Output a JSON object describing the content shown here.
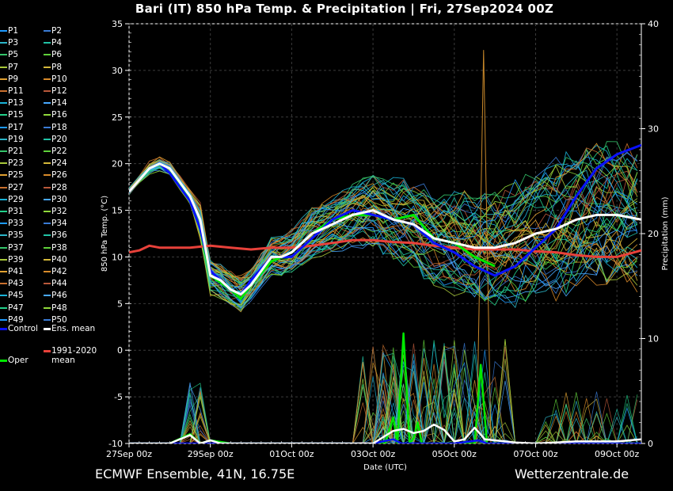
{
  "header": {
    "title": "Bari  (IT)  850 hPa Temp. & Precipitation | Fri, 27Sep2024 00Z"
  },
  "footer": {
    "model_label": "ECMWF Ensemble, 41N, 16.75E",
    "site_label": "Wetterzentrale.de"
  },
  "legend": {
    "members": [
      "P1",
      "P2",
      "P3",
      "P4",
      "P5",
      "P6",
      "P7",
      "P8",
      "P9",
      "P10",
      "P11",
      "P12",
      "P13",
      "P14",
      "P15",
      "P16",
      "P17",
      "P18",
      "P19",
      "P20",
      "P21",
      "P22",
      "P23",
      "P24",
      "P25",
      "P26",
      "P27",
      "P28",
      "P29",
      "P30",
      "P31",
      "P32",
      "P33",
      "P34",
      "P35",
      "P36",
      "P37",
      "P38",
      "P39",
      "P40",
      "P41",
      "P42",
      "P43",
      "P44",
      "P45",
      "P46",
      "P47",
      "P48",
      "P49",
      "P50"
    ],
    "control": "Control",
    "ens_mean": "Ens. mean",
    "climate_line1": "1991-2020",
    "climate_line2": "mean",
    "oper": "Oper",
    "colors": {
      "control": "#0a12ff",
      "ens_mean": "#ffffff",
      "climate": "#e8413a",
      "oper": "#00e800"
    }
  },
  "chart_data": {
    "type": "line",
    "xlabel": "Date (UTC)",
    "ylabel_left": "850 hPa Temp. (°C)",
    "ylabel_right": "Precipitation (mm)",
    "x_unit": "days since 27Sep 00z",
    "xlim": [
      0,
      12.6
    ],
    "ylim_left": [
      -10,
      35
    ],
    "ylim_right": [
      0,
      40
    ],
    "x_ticks": [
      0,
      2,
      4,
      6,
      8,
      10,
      12
    ],
    "x_tick_labels": [
      "27Sep 00z",
      "29Sep 00z",
      "01Oct 00z",
      "03Oct 00z",
      "05Oct 00z",
      "07Oct 00z",
      "09Oct 00z"
    ],
    "y_ticks_left": [
      35,
      30,
      25,
      20,
      15,
      10,
      5,
      0,
      -5,
      -10
    ],
    "y_ticks_right": [
      40,
      30,
      20,
      10,
      0
    ],
    "grid": true,
    "series": [
      {
        "name": "Ens. mean",
        "x": [
          0,
          0.5,
          0.75,
          1,
          1.25,
          1.5,
          1.75,
          2,
          2.25,
          2.5,
          2.75,
          3,
          3.25,
          3.5,
          3.75,
          4,
          4.5,
          5,
          5.5,
          6,
          6.5,
          7,
          7.5,
          8,
          8.5,
          9,
          9.5,
          10,
          10.5,
          11,
          11.5,
          12,
          12.6
        ],
        "y": [
          17,
          19.5,
          20,
          19.5,
          18,
          16.5,
          14,
          8,
          7.5,
          6.5,
          6,
          7,
          8.5,
          10,
          10,
          10.5,
          12.5,
          13.5,
          14.5,
          15,
          14,
          13.5,
          12,
          11.5,
          11,
          11,
          11.5,
          12.5,
          13,
          14,
          14.5,
          14.5,
          14
        ]
      },
      {
        "name": "Control",
        "x": [
          0,
          0.5,
          0.75,
          1,
          1.5,
          1.75,
          2,
          2.5,
          2.75,
          3,
          3.5,
          4,
          4.5,
          5,
          5.5,
          6,
          6.5,
          7,
          7.5,
          8,
          8.5,
          9,
          9.5,
          10,
          10.5,
          11,
          11.5,
          12,
          12.6
        ],
        "y": [
          17,
          19.5,
          20,
          19,
          16,
          13,
          8.5,
          6.5,
          6,
          7.5,
          10,
          10,
          12,
          14,
          15,
          14.5,
          14,
          13.5,
          11.5,
          10.5,
          9,
          8,
          9,
          11,
          13,
          16.5,
          19.5,
          21,
          22
        ]
      },
      {
        "name": "Oper",
        "x": [
          0,
          0.5,
          0.75,
          1,
          1.5,
          1.75,
          2,
          2.5,
          2.75,
          3,
          3.5,
          4,
          4.5,
          5,
          5.5,
          6,
          6.5,
          7,
          7.5,
          8,
          8.5,
          9
        ],
        "y": [
          17,
          19.5,
          20,
          19.5,
          16,
          13,
          8,
          6.5,
          5.5,
          7,
          9.5,
          10.5,
          12.5,
          14,
          14.5,
          14.5,
          14,
          14.5,
          12,
          11.5,
          10,
          9
        ]
      },
      {
        "name": "1991-2020 mean",
        "x": [
          0,
          0.25,
          0.5,
          0.75,
          1,
          1.5,
          2,
          2.5,
          3,
          3.5,
          4,
          4.5,
          5,
          5.5,
          6,
          6.5,
          7,
          7.5,
          8,
          8.5,
          9,
          9.5,
          10,
          10.5,
          11,
          11.5,
          12,
          12.6
        ],
        "y": [
          10.5,
          10.7,
          11.2,
          11,
          11,
          11,
          11.2,
          11,
          10.8,
          11,
          11,
          11.2,
          11.5,
          11.8,
          11.8,
          11.6,
          11.5,
          11.2,
          11,
          10.8,
          10.8,
          10.8,
          10.6,
          10.5,
          10.2,
          10,
          10,
          10.7
        ]
      }
    ],
    "precip_series": [
      {
        "name": "Ens. mean",
        "x": [
          0,
          1,
          1.5,
          1.75,
          2,
          2.25,
          2.5,
          3,
          4,
          5,
          6,
          6.25,
          6.5,
          6.75,
          7,
          7.25,
          7.5,
          7.75,
          8,
          8.25,
          8.5,
          8.75,
          9,
          9.25,
          9.5,
          10,
          10.5,
          11,
          12,
          12.6
        ],
        "y": [
          0,
          0,
          0.8,
          0,
          0.3,
          0,
          0,
          0,
          0,
          0,
          0,
          0.6,
          1.2,
          1.4,
          1,
          1.2,
          1.8,
          1.3,
          0.2,
          0.4,
          1.5,
          0.4,
          0.3,
          0.2,
          0.1,
          0,
          0.1,
          0.2,
          0.2,
          0.4
        ]
      },
      {
        "name": "Oper",
        "x": [
          0,
          1,
          1.5,
          1.75,
          2,
          2.5,
          3,
          5,
          6,
          6.3,
          6.5,
          6.6,
          6.75,
          6.9,
          7,
          7.1,
          7.2,
          8,
          8.5,
          8.65,
          8.8,
          9,
          9.5,
          10,
          12.6
        ],
        "y": [
          0,
          0,
          0.9,
          0,
          0.3,
          0,
          0,
          0,
          0,
          0,
          2.5,
          0,
          10.5,
          0,
          0.5,
          2,
          0,
          0,
          0,
          7.5,
          0,
          0,
          0,
          0,
          0
        ]
      },
      {
        "name": "Control",
        "x": [
          0,
          6,
          6.5,
          6.7,
          7,
          8,
          8.6,
          8.8,
          9,
          12.6
        ],
        "y": [
          0,
          0,
          0.4,
          0,
          0,
          0,
          0.3,
          0,
          0,
          0
        ]
      }
    ]
  }
}
